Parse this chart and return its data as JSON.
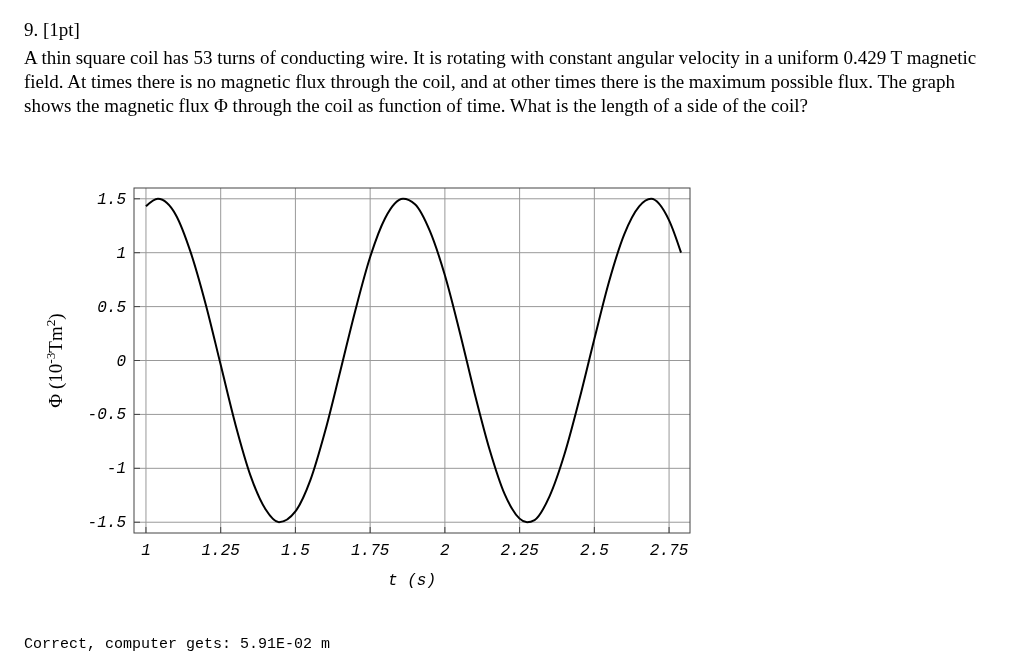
{
  "chart_data": {
    "type": "line",
    "title": "9. [1pt]",
    "subtitle": "A thin square coil has 53 turns of conducting wire. It is rotating with constant angular velocity in a uniform 0.429 T magnetic field. At times there is no magnetic flux through the coil, and at other times there is the maximum possible flux. The graph shows the magnetic flux Φ through the coil as function of time. What is the length of a side of the coil?",
    "xlabel": "t (s)",
    "ylabel": "Φ (10$^{-3}$Tm$^{2}$)",
    "annotations": [
      "Correct, computer gets: 5.91E-02 m"
    ],
    "x": [
      1.0,
      1.04,
      1.1,
      1.15,
      1.2,
      1.25,
      1.3,
      1.35,
      1.4,
      1.445,
      1.5,
      1.55,
      1.6,
      1.65,
      1.7,
      1.75,
      1.8,
      1.86,
      1.9,
      1.95,
      2.0,
      2.05,
      2.1,
      2.15,
      2.2,
      2.275,
      2.3,
      2.35,
      2.4,
      2.45,
      2.5,
      2.55,
      2.6,
      2.65,
      2.69,
      2.75,
      2.79
    ],
    "series": [
      {
        "color": "#000000",
        "values": [
          1.43,
          1.5,
          1.35,
          1.0,
          0.52,
          -0.04,
          -0.6,
          -1.07,
          -1.38,
          -1.5,
          -1.4,
          -1.11,
          -0.65,
          -0.1,
          0.46,
          0.96,
          1.32,
          1.5,
          1.45,
          1.2,
          0.79,
          0.26,
          -0.31,
          -0.83,
          -1.24,
          -1.5,
          -1.48,
          -1.26,
          -0.87,
          -0.36,
          0.2,
          0.74,
          1.17,
          1.43,
          1.5,
          1.3,
          1.0
        ]
      }
    ],
    "xlim": [
      0.96,
      2.82
    ],
    "ylim": [
      -1.6,
      1.6
    ],
    "xticks": [
      1,
      1.25,
      1.5,
      1.75,
      2,
      2.25,
      2.5,
      2.75
    ],
    "yticks": [
      -1.5,
      -1,
      -0.5,
      0,
      0.5,
      1,
      1.5
    ],
    "grid": true,
    "marker": "none",
    "line_style": "solid"
  }
}
